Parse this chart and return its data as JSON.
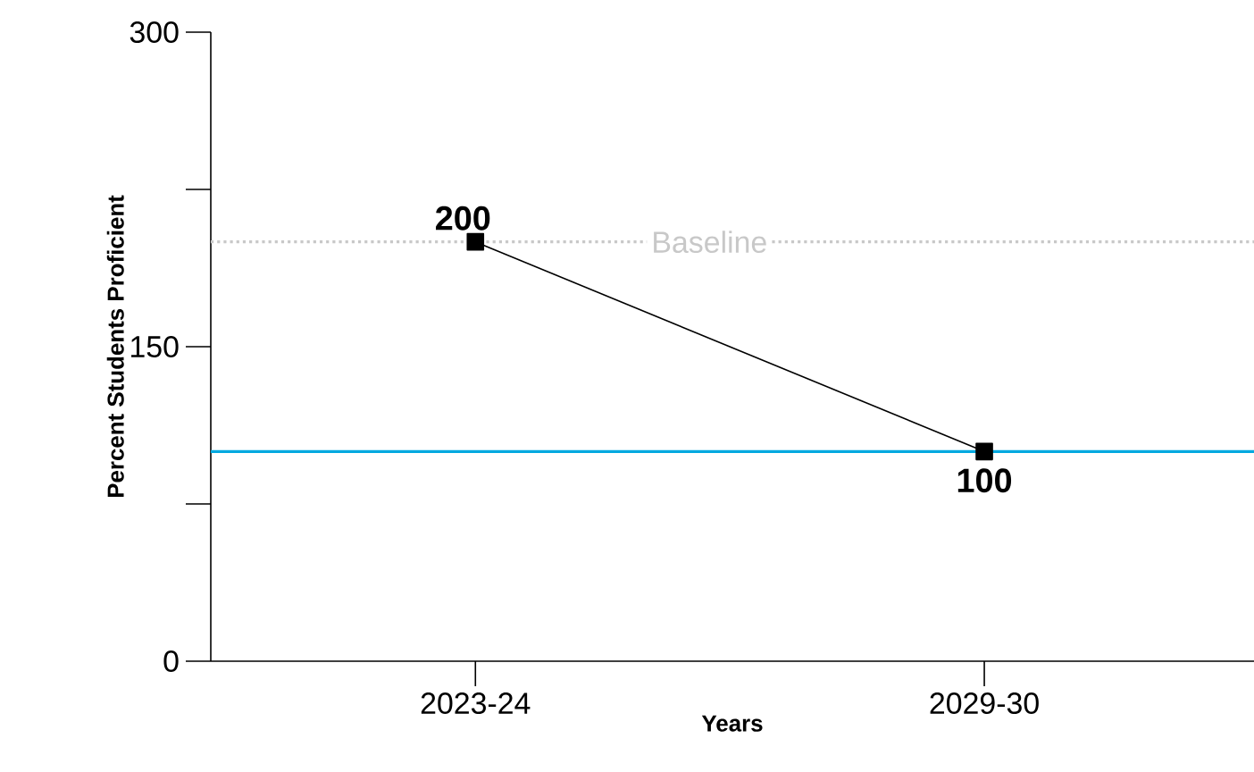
{
  "chart_data": {
    "type": "line",
    "xlabel": "Years",
    "ylabel": "Percent Students Proficient",
    "categories": [
      "2023-24",
      "2029-30"
    ],
    "series": [
      {
        "color": "#000000",
        "values": [
          200,
          100
        ]
      }
    ],
    "marker": "square",
    "line_style": "solid",
    "data_labels": true,
    "grid": false,
    "ylim": [
      0,
      300
    ],
    "yticks": [
      0,
      {
        "value": 75,
        "label": null
      },
      150,
      {
        "value": 225,
        "label": null
      },
      300
    ],
    "ref_lines": [
      {
        "axis": "y",
        "value": 200,
        "label": "Baseline",
        "color": "#c8c8c8",
        "line_style": "dotted"
      },
      {
        "axis": "y",
        "value": 100,
        "color": "#00a9e0",
        "line_style": "solid"
      }
    ]
  }
}
